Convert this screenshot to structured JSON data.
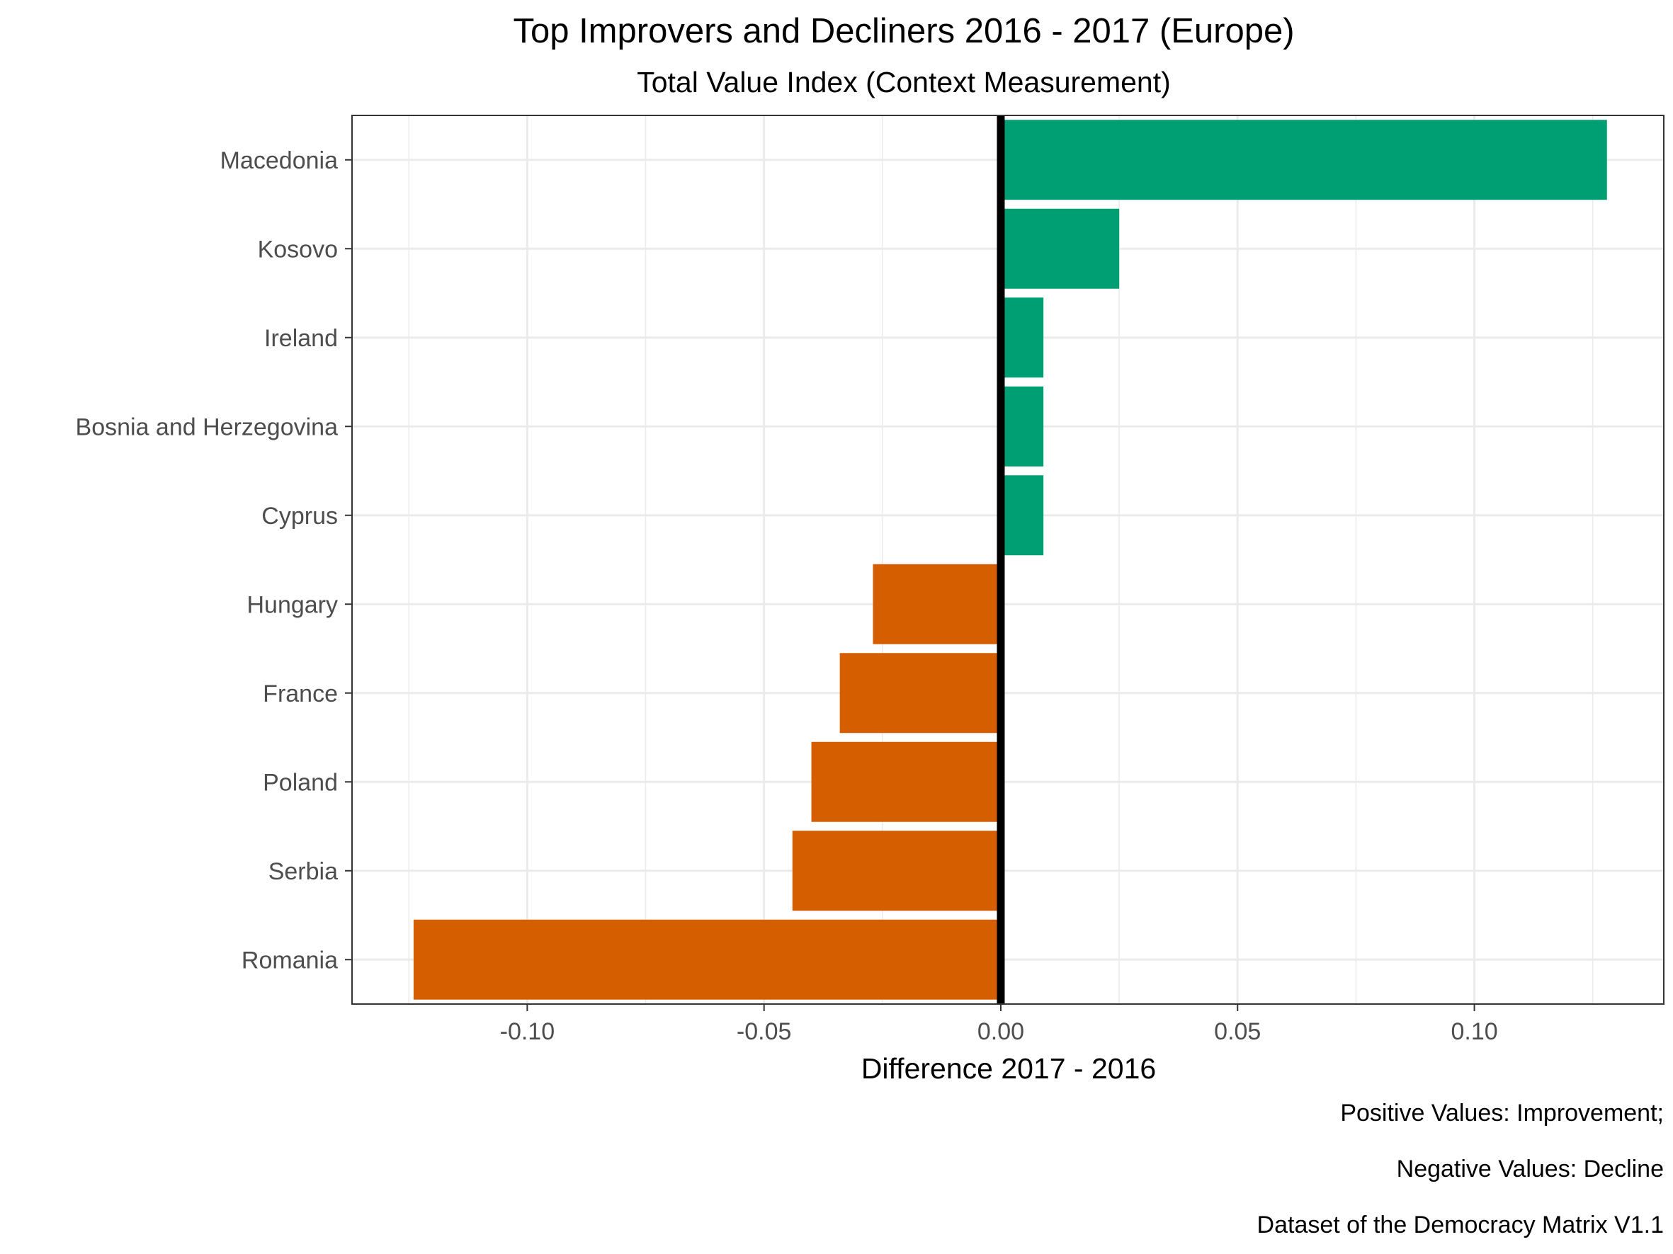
{
  "chart_data": {
    "type": "bar",
    "orientation": "horizontal",
    "title": "Top Improvers and Decliners 2016 - 2017 (Europe)",
    "subtitle": "Total Value Index (Context Measurement)",
    "xlabel": "Difference 2017 - 2016",
    "ylabel": "",
    "categories": [
      "Macedonia",
      "Kosovo",
      "Ireland",
      "Bosnia and Herzegovina",
      "Cyprus",
      "Hungary",
      "France",
      "Poland",
      "Serbia",
      "Romania"
    ],
    "values": [
      0.128,
      0.025,
      0.009,
      0.009,
      0.009,
      -0.027,
      -0.034,
      -0.04,
      -0.044,
      -0.124
    ],
    "xlim": [
      -0.137,
      0.14
    ],
    "xticks": [
      -0.1,
      -0.05,
      0.0,
      0.05,
      0.1
    ],
    "xtick_labels": [
      "-0.10",
      "-0.05",
      "0.00",
      "0.05",
      "0.10"
    ],
    "grid": true,
    "zero_line": true,
    "colors": {
      "positive": "#009E73",
      "negative": "#D55E00",
      "zero_line": "#000000",
      "grid": "#EBEBEB",
      "panel_border": "#333333"
    },
    "captions": [
      "Positive Values: Improvement;",
      "Negative Values: Decline",
      "Dataset of the Democracy Matrix V1.1"
    ]
  }
}
